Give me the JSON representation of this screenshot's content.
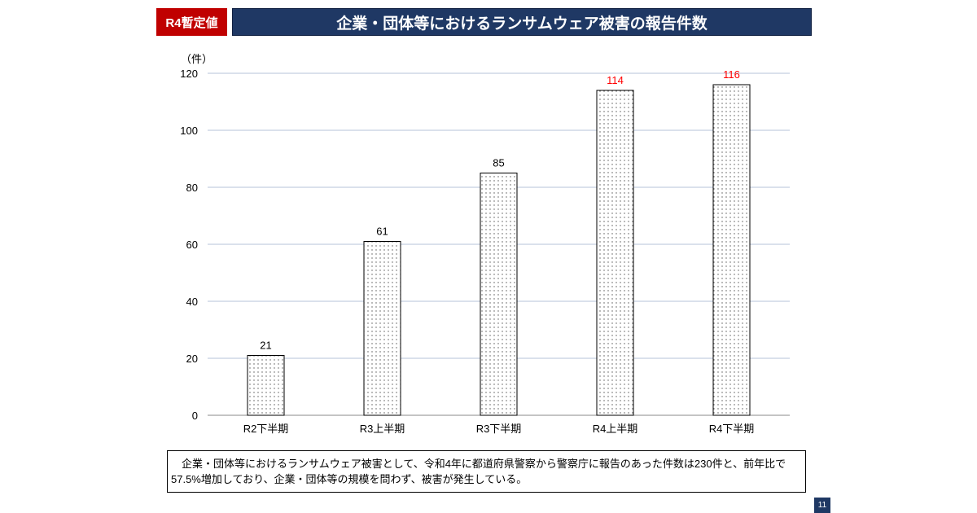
{
  "badge": "R4暫定値",
  "title": "企業・団体等におけるランサムウェア被害の報告件数",
  "summary": "　企業・団体等におけるランサムウェア被害として、令和4年に都道府県警察から警察庁に報告のあった件数は230件と、前年比で57.5%増加しており、企業・団体等の規模を問わず、被害が発生している。",
  "page_number": "11",
  "colors": {
    "badge": "#c00000",
    "title_bar": "#1f3864",
    "gridline": "#b4c3d8",
    "highlight_label": "#ff0000"
  },
  "chart_data": {
    "type": "bar",
    "ylabel": "（件）",
    "categories": [
      "R2下半期",
      "R3上半期",
      "R3下半期",
      "R4上半期",
      "R4下半期"
    ],
    "values": [
      21,
      61,
      85,
      114,
      116
    ],
    "highlighted": [
      false,
      false,
      false,
      true,
      true
    ],
    "ylim": [
      0,
      120
    ],
    "yticks": [
      0,
      20,
      40,
      60,
      80,
      100,
      120
    ],
    "grid": true,
    "bar_fill": "dotted pattern"
  }
}
